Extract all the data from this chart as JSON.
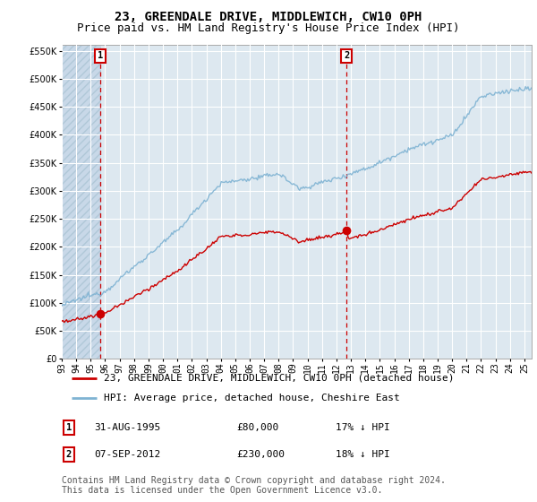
{
  "title": "23, GREENDALE DRIVE, MIDDLEWICH, CW10 0PH",
  "subtitle": "Price paid vs. HM Land Registry's House Price Index (HPI)",
  "legend_line1": "23, GREENDALE DRIVE, MIDDLEWICH, CW10 0PH (detached house)",
  "legend_line2": "HPI: Average price, detached house, Cheshire East",
  "note": "Contains HM Land Registry data © Crown copyright and database right 2024.\nThis data is licensed under the Open Government Licence v3.0.",
  "sale1_label": "1",
  "sale1_date": "31-AUG-1995",
  "sale1_price": "£80,000",
  "sale1_hpi": "17% ↓ HPI",
  "sale2_label": "2",
  "sale2_date": "07-SEP-2012",
  "sale2_price": "£230,000",
  "sale2_hpi": "18% ↓ HPI",
  "sale1_x": 1995.66,
  "sale1_y": 80000,
  "sale2_x": 2012.69,
  "sale2_y": 230000,
  "ylim_min": 0,
  "ylim_max": 560000,
  "yticks": [
    0,
    50000,
    100000,
    150000,
    200000,
    250000,
    300000,
    350000,
    400000,
    450000,
    500000,
    550000
  ],
  "xlim_min": 1993.0,
  "xlim_max": 2025.5,
  "xtick_years": [
    1993,
    1994,
    1995,
    1996,
    1997,
    1998,
    1999,
    2000,
    2001,
    2002,
    2003,
    2004,
    2005,
    2006,
    2007,
    2008,
    2009,
    2010,
    2011,
    2012,
    2013,
    2014,
    2015,
    2016,
    2017,
    2018,
    2019,
    2020,
    2021,
    2022,
    2023,
    2024,
    2025
  ],
  "hpi_color": "#7fb3d3",
  "price_color": "#cc0000",
  "bg_color": "#ffffff",
  "plot_bg_color": "#dde8f0",
  "hatch_bg_color": "#c8d8e8",
  "grid_color": "#ffffff",
  "title_fontsize": 10,
  "subtitle_fontsize": 9,
  "tick_fontsize": 7,
  "legend_fontsize": 8,
  "note_fontsize": 7,
  "label_box_color": "#cc0000"
}
